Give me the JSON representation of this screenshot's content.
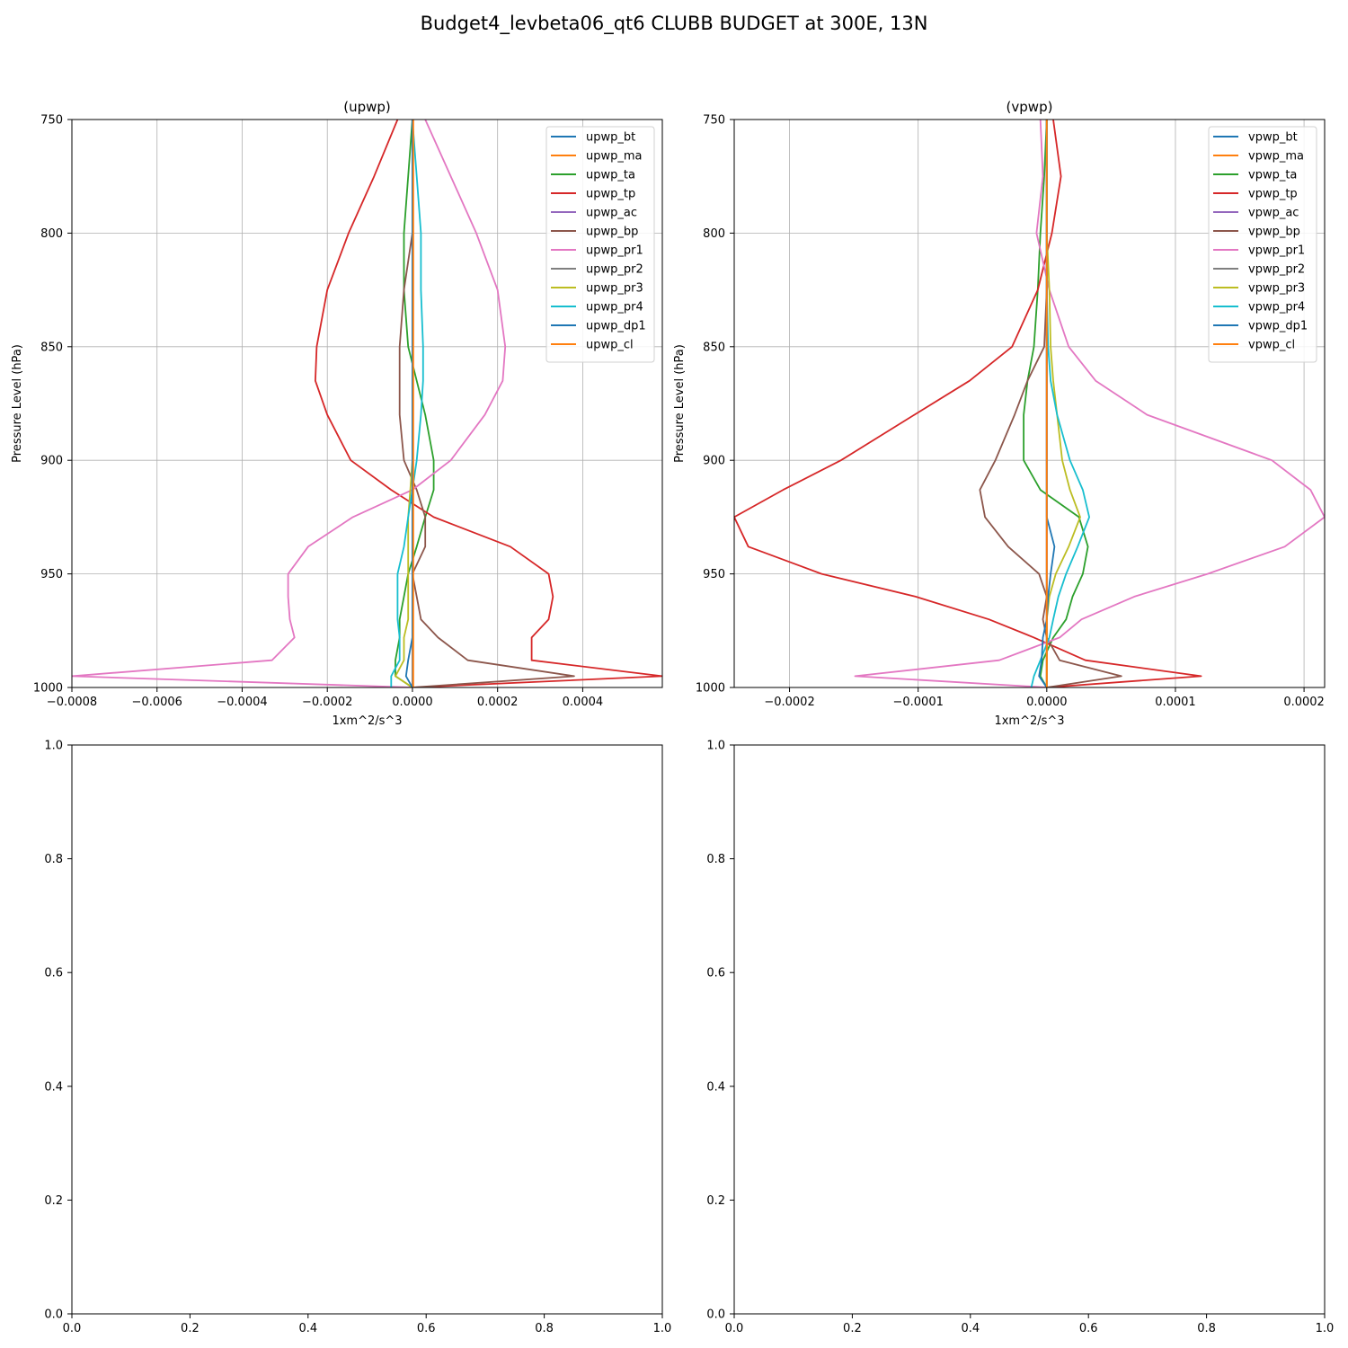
{
  "figure": {
    "title": "Budget4_levbeta06_qt6 CLUBB BUDGET at 300E, 13N"
  },
  "levels": [
    750,
    775,
    800,
    825,
    850,
    865,
    880,
    900,
    913,
    925,
    938,
    950,
    960,
    970,
    978,
    988,
    995,
    1000
  ],
  "chart_data": [
    {
      "type": "line",
      "title": "(upwp)",
      "xlabel": "1xm^2/s^3",
      "ylabel": "Pressure Level (hPa)",
      "xlim": [
        -0.0008,
        0.000587
      ],
      "ylim": [
        1000,
        750
      ],
      "y_inverted": true,
      "grid": true,
      "legend": "top-right",
      "xticks": [
        -0.0008,
        -0.0006,
        -0.0004,
        -0.0002,
        0.0,
        0.0002,
        0.0004
      ],
      "xtick_labels": [
        "−0.0008",
        "−0.0006",
        "−0.0004",
        "−0.0002",
        "0.0000",
        "0.0002",
        "0.0004"
      ],
      "yticks": [
        750,
        800,
        850,
        900,
        950,
        1000
      ],
      "ytick_labels": [
        "750",
        "800",
        "850",
        "900",
        "950",
        "1000"
      ],
      "series": [
        {
          "name": "upwp_bt",
          "color": "#1f77b4",
          "values": [
            0,
            0,
            0,
            0,
            0,
            0,
            0,
            0,
            0,
            0,
            0,
            0,
            0,
            0,
            0,
            0,
            0,
            0
          ]
        },
        {
          "name": "upwp_ma",
          "color": "#ff7f0e",
          "values": [
            0,
            0,
            0,
            0,
            0,
            0,
            0,
            0,
            0,
            0,
            0,
            0,
            0,
            0,
            0,
            0,
            0,
            0
          ]
        },
        {
          "name": "upwp_ta",
          "color": "#2ca02c",
          "values": [
            0.0,
            -1e-05,
            -2e-05,
            -2e-05,
            -1e-05,
            1e-05,
            3e-05,
            5e-05,
            5e-05,
            3e-05,
            1e-05,
            -1e-05,
            -2e-05,
            -3e-05,
            -3e-05,
            -4e-05,
            -4e-05,
            0.0
          ]
        },
        {
          "name": "upwp_tp",
          "color": "#d62728",
          "values": [
            -3.5e-05,
            -9e-05,
            -0.00015,
            -0.0002,
            -0.000225,
            -0.000228,
            -0.0002,
            -0.000145,
            -5e-05,
            5e-05,
            0.00023,
            0.00032,
            0.00033,
            0.00032,
            0.00028,
            0.00028,
            0.000587,
            0.0
          ]
        },
        {
          "name": "upwp_ac",
          "color": "#9467bd",
          "values": [
            0,
            0,
            0,
            0,
            0,
            0,
            0,
            0,
            0,
            0,
            0,
            0,
            0,
            0,
            0,
            0,
            0,
            0
          ]
        },
        {
          "name": "upwp_bp",
          "color": "#8c564b",
          "values": [
            0.0,
            0.0,
            0.0,
            -2e-05,
            -3e-05,
            -3e-05,
            -3e-05,
            -2e-05,
            1e-05,
            3e-05,
            3e-05,
            0.0,
            1e-05,
            2e-05,
            6e-05,
            0.00013,
            0.00038,
            0.0
          ]
        },
        {
          "name": "upwp_pr1",
          "color": "#e377c2",
          "values": [
            3e-05,
            9e-05,
            0.00015,
            0.0002,
            0.000218,
            0.000212,
            0.00017,
            9e-05,
            0.0,
            -0.00014,
            -0.000245,
            -0.000292,
            -0.000292,
            -0.000288,
            -0.000277,
            -0.00033,
            -0.0008,
            0.0
          ]
        },
        {
          "name": "upwp_pr2",
          "color": "#7f7f7f",
          "values": [
            0,
            0,
            0,
            0,
            0,
            0,
            0,
            0,
            0,
            0,
            0,
            0,
            0,
            0,
            0,
            0,
            0,
            0
          ]
        },
        {
          "name": "upwp_pr3",
          "color": "#bcbd22",
          "values": [
            0.0,
            0.0,
            0.0,
            0.0,
            0.0,
            0.0,
            0.0,
            0.0,
            -5e-06,
            -1e-05,
            -1e-05,
            -1e-05,
            -1e-05,
            -1e-05,
            -2e-05,
            -2e-05,
            -4e-05,
            0.0
          ]
        },
        {
          "name": "upwp_pr4",
          "color": "#17becf",
          "values": [
            0.0,
            1e-05,
            2e-05,
            2e-05,
            2.5e-05,
            2.5e-05,
            2e-05,
            1e-05,
            0.0,
            -1e-05,
            -2e-05,
            -3.5e-05,
            -3.5e-05,
            -3.5e-05,
            -3e-05,
            -3e-05,
            -5e-05,
            -5e-05
          ]
        },
        {
          "name": "upwp_dp1",
          "color": "#1f77b4",
          "values": [
            0.0,
            0.0,
            0.0,
            0.0,
            0.0,
            0.0,
            0.0,
            0.0,
            0.0,
            0.0,
            0.0,
            0.0,
            0.0,
            0.0,
            0.0,
            -1e-05,
            -1.5e-05,
            0.0
          ]
        },
        {
          "name": "upwp_cl",
          "color": "#ff7f0e",
          "values": [
            2e-06,
            2e-06,
            2e-06,
            2e-06,
            2e-06,
            2e-06,
            2e-06,
            2e-06,
            2e-06,
            2e-06,
            2e-06,
            2e-06,
            2e-06,
            2e-06,
            2e-06,
            2e-06,
            2e-06,
            2e-06
          ]
        }
      ]
    },
    {
      "type": "line",
      "title": "(vpwp)",
      "xlabel": "1xm^2/s^3",
      "ylabel": "Pressure Level (hPa)",
      "xlim": [
        -0.000243,
        0.000216
      ],
      "ylim": [
        1000,
        750
      ],
      "y_inverted": true,
      "grid": true,
      "legend": "top-right",
      "xticks": [
        -0.0002,
        -0.0001,
        0.0,
        0.0001,
        0.0002
      ],
      "xtick_labels": [
        "−0.0002",
        "−0.0001",
        "0.0000",
        "0.0001",
        "0.0002"
      ],
      "yticks": [
        750,
        800,
        850,
        900,
        950,
        1000
      ],
      "ytick_labels": [
        "750",
        "800",
        "850",
        "900",
        "950",
        "1000"
      ],
      "series": [
        {
          "name": "vpwp_bt",
          "color": "#1f77b4",
          "values": [
            0,
            0,
            0,
            0,
            0,
            0,
            0,
            0,
            0,
            0,
            0,
            0,
            0,
            0,
            0,
            0,
            0,
            0
          ]
        },
        {
          "name": "vpwp_ma",
          "color": "#ff7f0e",
          "values": [
            0,
            0,
            0,
            0,
            0,
            0,
            0,
            0,
            0,
            0,
            0,
            0,
            0,
            0,
            0,
            0,
            0,
            0
          ]
        },
        {
          "name": "vpwp_ta",
          "color": "#2ca02c",
          "values": [
            0.0,
            -2e-06,
            -5e-06,
            -7e-06,
            -1e-05,
            -1.5e-05,
            -1.8e-05,
            -1.8e-05,
            -5e-06,
            2.5e-05,
            3.2e-05,
            2.8e-05,
            2e-05,
            1.5e-05,
            5e-06,
            -3e-06,
            -5e-06,
            0.0
          ]
        },
        {
          "name": "vpwp_tp",
          "color": "#d62728",
          "values": [
            5e-06,
            1.1e-05,
            4e-06,
            -7e-06,
            -2.7e-05,
            -6e-05,
            -0.000103,
            -0.00016,
            -0.000205,
            -0.000243,
            -0.000232,
            -0.000175,
            -0.000102,
            -4.5e-05,
            -1e-05,
            3e-05,
            0.00012,
            0.0
          ]
        },
        {
          "name": "vpwp_ac",
          "color": "#9467bd",
          "values": [
            0,
            0,
            0,
            0,
            0,
            0,
            0,
            0,
            0,
            0,
            0,
            0,
            0,
            0,
            0,
            0,
            0,
            0
          ]
        },
        {
          "name": "vpwp_bp",
          "color": "#8c564b",
          "values": [
            0.0,
            0.0,
            0.0,
            0.0,
            -2e-06,
            -1.5e-05,
            -2.5e-05,
            -4e-05,
            -5.2e-05,
            -4.8e-05,
            -3e-05,
            -6e-06,
            0.0,
            -3e-06,
            0.0,
            1e-05,
            5.8e-05,
            0.0
          ]
        },
        {
          "name": "vpwp_pr1",
          "color": "#e377c2",
          "values": [
            -5e-06,
            -3e-06,
            -8e-06,
            2e-06,
            1.7e-05,
            3.8e-05,
            7.8e-05,
            0.000175,
            0.000205,
            0.000216,
            0.000185,
            0.000125,
            6.8e-05,
            2.7e-05,
            1e-05,
            -3.7e-05,
            -0.000149,
            0.0
          ]
        },
        {
          "name": "vpwp_pr2",
          "color": "#7f7f7f",
          "values": [
            0,
            0,
            0,
            0,
            0,
            0,
            0,
            0,
            0,
            0,
            0,
            0,
            0,
            0,
            0,
            0,
            0,
            0
          ]
        },
        {
          "name": "vpwp_pr3",
          "color": "#bcbd22",
          "values": [
            0.0,
            0.0,
            0.0,
            2e-06,
            3e-06,
            5e-06,
            8e-06,
            1.2e-05,
            1.8e-05,
            2.6e-05,
            1.7e-05,
            7e-06,
            2e-06,
            0.0,
            0.0,
            0.0,
            0.0,
            0.0
          ]
        },
        {
          "name": "vpwp_pr4",
          "color": "#17becf",
          "values": [
            0.0,
            0.0,
            0.0,
            0.0,
            1e-06,
            3e-06,
            8e-06,
            1.8e-05,
            2.8e-05,
            3.3e-05,
            2.4e-05,
            1.5e-05,
            9e-06,
            5e-06,
            2e-06,
            -5e-06,
            -1e-05,
            -1.2e-05
          ]
        },
        {
          "name": "vpwp_dp1",
          "color": "#1f77b4",
          "values": [
            0.0,
            0.0,
            0.0,
            0.0,
            0.0,
            0.0,
            0.0,
            0.0,
            0.0,
            0.0,
            6e-06,
            3e-06,
            1e-06,
            0.0,
            -3e-06,
            -4e-06,
            -6e-06,
            0.0
          ]
        },
        {
          "name": "vpwp_cl",
          "color": "#ff7f0e",
          "values": [
            0,
            0,
            0,
            0,
            0,
            0,
            0,
            0,
            0,
            0,
            0,
            0,
            0,
            0,
            0,
            0,
            0,
            0
          ]
        }
      ]
    },
    {
      "type": "empty",
      "xlim": [
        0,
        1
      ],
      "ylim": [
        0,
        1
      ],
      "xticks": [
        0.0,
        0.2,
        0.4,
        0.6,
        0.8,
        1.0
      ],
      "xtick_labels": [
        "0.0",
        "0.2",
        "0.4",
        "0.6",
        "0.8",
        "1.0"
      ],
      "yticks": [
        0.0,
        0.2,
        0.4,
        0.6,
        0.8,
        1.0
      ],
      "ytick_labels": [
        "0.0",
        "0.2",
        "0.4",
        "0.6",
        "0.8",
        "1.0"
      ]
    },
    {
      "type": "empty",
      "xlim": [
        0,
        1
      ],
      "ylim": [
        0,
        1
      ],
      "xticks": [
        0.0,
        0.2,
        0.4,
        0.6,
        0.8,
        1.0
      ],
      "xtick_labels": [
        "0.0",
        "0.2",
        "0.4",
        "0.6",
        "0.8",
        "1.0"
      ],
      "yticks": [
        0.0,
        0.2,
        0.4,
        0.6,
        0.8,
        1.0
      ],
      "ytick_labels": [
        "0.0",
        "0.2",
        "0.4",
        "0.6",
        "0.8",
        "1.0"
      ]
    }
  ]
}
